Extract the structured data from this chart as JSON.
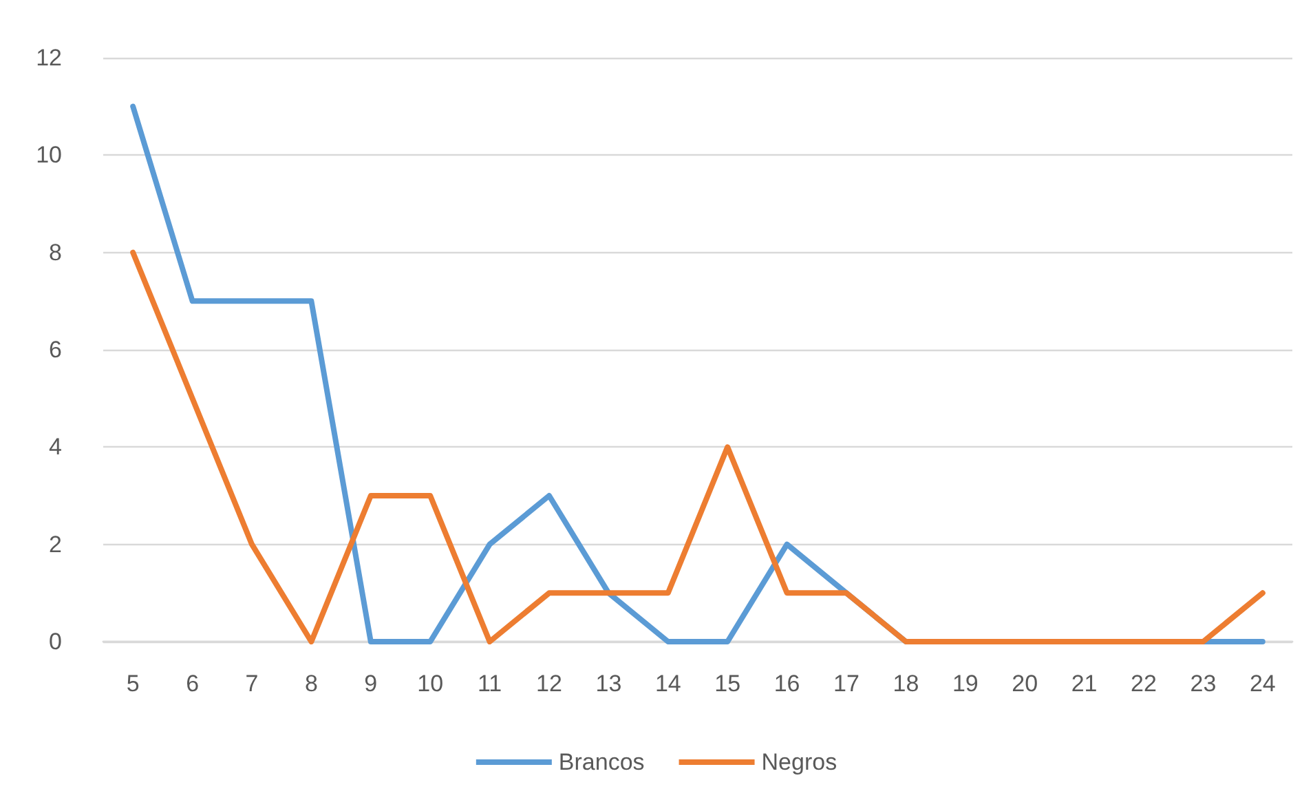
{
  "chart_data": {
    "type": "line",
    "categories": [
      "5",
      "6",
      "7",
      "8",
      "9",
      "10",
      "11",
      "12",
      "13",
      "14",
      "15",
      "16",
      "17",
      "18",
      "19",
      "20",
      "21",
      "22",
      "23",
      "24"
    ],
    "series": [
      {
        "name": "Brancos",
        "color": "#5b9bd5",
        "values": [
          11,
          7,
          7,
          7,
          0,
          0,
          2,
          3,
          1,
          0,
          0,
          2,
          1,
          0,
          0,
          0,
          0,
          0,
          0,
          0
        ]
      },
      {
        "name": "Negros",
        "color": "#ed7d31",
        "values": [
          8,
          5,
          2,
          0,
          3,
          3,
          0,
          1,
          1,
          1,
          4,
          1,
          1,
          0,
          0,
          0,
          0,
          0,
          0,
          1
        ]
      }
    ],
    "ylim": [
      0,
      12
    ],
    "yticks": [
      0,
      2,
      4,
      6,
      8,
      10,
      12
    ],
    "grid": "y",
    "legend": "bottom",
    "marker": "none",
    "line_style": "solid"
  }
}
